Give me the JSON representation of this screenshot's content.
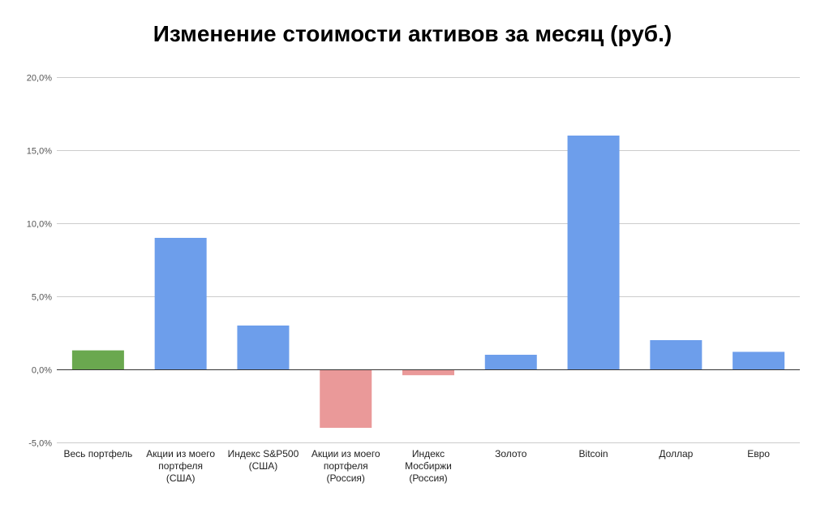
{
  "chart_data": {
    "type": "bar",
    "title": "Изменение стоимости активов за месяц (руб.)",
    "xlabel": "",
    "ylabel": "",
    "ylim": [
      -5,
      20
    ],
    "yticks": [
      -5,
      0,
      5,
      10,
      15,
      20
    ],
    "ytick_labels": [
      "-5,0%",
      "0,0%",
      "5,0%",
      "10,0%",
      "15,0%",
      "20,0%"
    ],
    "categories": [
      "Весь портфель",
      "Акции из моего портфеля (США)",
      "Индекс S&P500 (США)",
      "Акции из моего портфеля (Россия)",
      "Индекс Мосбиржи (Россия)",
      "Золото",
      "Bitcoin",
      "Доллар",
      "Евро"
    ],
    "category_label_lines": [
      [
        "Весь портфель"
      ],
      [
        "Акции из моего",
        "портфеля",
        "(США)"
      ],
      [
        "Индекс S&P500",
        "(США)"
      ],
      [
        "Акции из моего",
        "портфеля",
        "(Россия)"
      ],
      [
        "Индекс",
        "Мосбиржи",
        "(Россия)"
      ],
      [
        "Золото"
      ],
      [
        "Bitcoin"
      ],
      [
        "Доллар"
      ],
      [
        "Евро"
      ]
    ],
    "values": [
      1.3,
      9.0,
      3.0,
      -4.0,
      -0.4,
      1.0,
      16.0,
      2.0,
      1.2
    ],
    "bar_colors": [
      "#6aa84f",
      "#6d9eeb",
      "#6d9eeb",
      "#ea9999",
      "#ea9999",
      "#6d9eeb",
      "#6d9eeb",
      "#6d9eeb",
      "#6d9eeb"
    ],
    "grid": true,
    "legend": "none"
  }
}
